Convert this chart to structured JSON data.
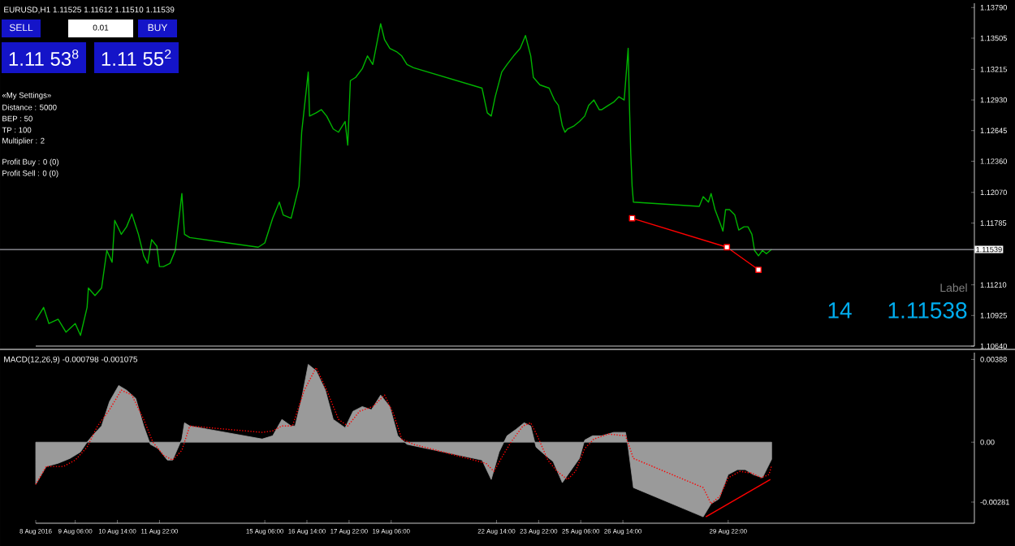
{
  "chart_data": [
    {
      "type": "line",
      "title": "EURUSD,H1  1.11525 1.11612 1.11510 1.11539",
      "annotations": [
        "SELL",
        "0.01",
        "BUY",
        "1.11 53$^{8}$",
        "1.11 55$^{2}$",
        "«My Settings»",
        "Distance : 5000",
        "BEP : 50",
        "TP : 100",
        "Multiplier : 2",
        "Profit Buy : 0 (0)",
        "Profit Sell : 0 (0)",
        "Label",
        "14",
        "1.11538"
      ],
      "xlim": [
        "2016-08-08T00:00",
        "2016-09-06T17:00"
      ],
      "ylim": [
        1.1064,
        1.1383
      ],
      "tick_labels": "y",
      "yticks": [
        {
          "value": 1.1379,
          "label": "1.13790"
        },
        {
          "value": 1.13505,
          "label": "1.13505"
        },
        {
          "value": 1.13215,
          "label": "1.13215"
        },
        {
          "value": 1.1293,
          "label": "1.12930"
        },
        {
          "value": 1.12645,
          "label": "1.12645"
        },
        {
          "value": 1.1236,
          "label": "1.12360"
        },
        {
          "value": 1.1207,
          "label": "1.12070"
        },
        {
          "value": 1.11785,
          "label": "1.11785"
        },
        {
          "value": 1.1121,
          "label": "1.11210"
        },
        {
          "value": 1.10925,
          "label": "1.10925"
        },
        {
          "value": 1.1064,
          "label": "1.10640"
        }
      ],
      "ref_lines": [
        {
          "axis": "y",
          "value": 1.11539,
          "label": "1.11539",
          "color": "#a0a0a8"
        }
      ],
      "series": [
        {
          "color": "#00b400",
          "marker": "none",
          "x": [
            "2016-08-08T00:00",
            "2016-08-08T06:00",
            "2016-08-08T10:00",
            "2016-08-08T17:00",
            "2016-08-08T23:00",
            "2016-08-09T06:00",
            "2016-08-09T10:00",
            "2016-08-09T15:00",
            "2016-08-09T16:00",
            "2016-08-09T21:00",
            "2016-08-10T02:00",
            "2016-08-10T06:00",
            "2016-08-10T10:00",
            "2016-08-10T12:00",
            "2016-08-10T17:00",
            "2016-08-10T21:00",
            "2016-08-11T01:00",
            "2016-08-11T06:00",
            "2016-08-11T10:00",
            "2016-08-11T13:00",
            "2016-08-11T16:00",
            "2016-08-11T20:00",
            "2016-08-11T22:00",
            "2016-08-12T01:00",
            "2016-08-12T06:00",
            "2016-08-12T10:00",
            "2016-08-12T15:00",
            "2016-08-12T17:00",
            "2016-08-12T21:00",
            "2016-08-15T01:00",
            "2016-08-15T06:00",
            "2016-08-15T12:00",
            "2016-08-15T17:00",
            "2016-08-15T20:00",
            "2016-08-16T02:00",
            "2016-08-16T05:00",
            "2016-08-16T08:00",
            "2016-08-16T10:00",
            "2016-08-16T15:00",
            "2016-08-16T16:00",
            "2016-08-16T21:00",
            "2016-08-17T01:00",
            "2016-08-17T05:00",
            "2016-08-17T10:00",
            "2016-08-17T14:00",
            "2016-08-17T19:00",
            "2016-08-17T21:00",
            "2016-08-17T23:00",
            "2016-08-18T03:00",
            "2016-08-18T08:00",
            "2016-08-18T12:00",
            "2016-08-18T16:00",
            "2016-08-18T22:00",
            "2016-08-19T01:00",
            "2016-08-19T05:00",
            "2016-08-19T10:00",
            "2016-08-19T14:00",
            "2016-08-19T18:00",
            "2016-08-19T23:00",
            "2016-08-22T03:00",
            "2016-08-22T07:00",
            "2016-08-22T10:00",
            "2016-08-22T13:00",
            "2016-08-22T18:00",
            "2016-08-22T22:00",
            "2016-08-23T03:00",
            "2016-08-23T08:00",
            "2016-08-23T12:00",
            "2016-08-23T16:00",
            "2016-08-23T18:00",
            "2016-08-23T23:00",
            "2016-08-24T06:00",
            "2016-08-24T10:00",
            "2016-08-24T13:00",
            "2016-08-24T16:00",
            "2016-08-24T18:00",
            "2016-08-24T20:00",
            "2016-08-25T01:00",
            "2016-08-25T05:00",
            "2016-08-25T09:00",
            "2016-08-25T12:00",
            "2016-08-25T16:00",
            "2016-08-25T20:00",
            "2016-08-25T22:00",
            "2016-08-26T03:00",
            "2016-08-26T07:00",
            "2016-08-26T11:00",
            "2016-08-26T15:00",
            "2016-08-26T18:00",
            "2016-08-26T19:00",
            "2016-08-26T20:00",
            "2016-08-26T21:00",
            "2016-08-26T22:00",
            "2016-08-29T00:00",
            "2016-08-29T03:00",
            "2016-08-29T07:00",
            "2016-08-29T09:00",
            "2016-08-29T12:00",
            "2016-08-29T16:00",
            "2016-08-29T18:00",
            "2016-08-29T20:00",
            "2016-08-29T23:00",
            "2016-08-30T03:00",
            "2016-08-30T06:00",
            "2016-08-30T10:00",
            "2016-08-30T13:00",
            "2016-08-30T16:00",
            "2016-08-30T18:00",
            "2016-08-30T21:00",
            "2016-08-31T00:00",
            "2016-08-31T03:00",
            "2016-08-31T06:00",
            "2016-08-31T07:00"
          ],
          "values": [
            1.1088,
            1.11,
            1.1085,
            1.1089,
            1.1077,
            1.1085,
            1.1074,
            1.11,
            1.1118,
            1.1111,
            1.1118,
            1.1153,
            1.1142,
            1.1181,
            1.1168,
            1.1175,
            1.1187,
            1.1168,
            1.1148,
            1.1141,
            1.1163,
            1.1157,
            1.1138,
            1.1138,
            1.1141,
            1.1153,
            1.1206,
            1.1168,
            1.1165,
            1.1156,
            1.116,
            1.1183,
            1.1198,
            1.1186,
            1.1183,
            1.1198,
            1.1213,
            1.1263,
            1.1319,
            1.1278,
            1.1281,
            1.1284,
            1.1278,
            1.1266,
            1.1263,
            1.1273,
            1.1251,
            1.1311,
            1.1314,
            1.1322,
            1.1334,
            1.1326,
            1.1364,
            1.1349,
            1.1341,
            1.1338,
            1.1334,
            1.1326,
            1.1323,
            1.1304,
            1.1281,
            1.1278,
            1.1296,
            1.1319,
            1.1326,
            1.1334,
            1.1341,
            1.1353,
            1.1334,
            1.1314,
            1.1307,
            1.1304,
            1.1293,
            1.1288,
            1.1269,
            1.1263,
            1.1266,
            1.1269,
            1.1273,
            1.1278,
            1.1288,
            1.1293,
            1.1284,
            1.1284,
            1.1288,
            1.1291,
            1.1296,
            1.1293,
            1.1341,
            1.1287,
            1.1243,
            1.1213,
            1.1198,
            1.1194,
            1.1203,
            1.1198,
            1.1206,
            1.1191,
            1.1178,
            1.1171,
            1.1191,
            1.1191,
            1.1186,
            1.1172,
            1.1175,
            1.1175,
            1.1168,
            1.1153,
            1.1148,
            1.1153,
            1.115,
            1.1153,
            1.1154
          ]
        },
        {
          "color": "#ff0000",
          "marker": "square",
          "x": [
            "2016-08-26T21:00",
            "2016-08-29T21:00",
            "2016-08-30T21:00"
          ],
          "values": [
            1.1183,
            1.1156,
            1.1135
          ]
        }
      ]
    },
    {
      "type": "area",
      "title": "MACD(12,26,9) -0.000798 -0.001075",
      "xlim": [
        "2016-08-08T00:00",
        "2016-09-06T17:00"
      ],
      "ylim": [
        -0.0038,
        0.0042
      ],
      "xticks": [
        {
          "value": "2016-08-08T00:00",
          "label": "8 Aug 2016"
        },
        {
          "value": "2016-08-09T06:00",
          "label": "9 Aug 06:00"
        },
        {
          "value": "2016-08-10T14:00",
          "label": "10 Aug 14:00"
        },
        {
          "value": "2016-08-11T22:00",
          "label": "11 Aug 22:00"
        },
        {
          "value": "2016-08-15T06:00",
          "label": "15 Aug 06:00"
        },
        {
          "value": "2016-08-16T14:00",
          "label": "16 Aug 14:00"
        },
        {
          "value": "2016-08-17T22:00",
          "label": "17 Aug 22:00"
        },
        {
          "value": "2016-08-19T06:00",
          "label": "19 Aug 06:00"
        },
        {
          "value": "2016-08-22T14:00",
          "label": "22 Aug 14:00"
        },
        {
          "value": "2016-08-23T22:00",
          "label": "23 Aug 22:00"
        },
        {
          "value": "2016-08-25T06:00",
          "label": "25 Aug 06:00"
        },
        {
          "value": "2016-08-26T14:00",
          "label": "26 Aug 14:00"
        },
        {
          "value": "2016-08-29T22:00",
          "label": "29 Aug 22:00"
        }
      ],
      "yticks": [
        {
          "value": 0.00388,
          "label": "0.00388"
        },
        {
          "value": 0,
          "label": "0.00"
        },
        {
          "value": -0.00281,
          "label": "-0.00281"
        }
      ],
      "series": [
        {
          "color": "#9a9a9a",
          "x": [
            "2016-08-08T00:00",
            "2016-08-08T08:00",
            "2016-08-08T17:00",
            "2016-08-09T02:00",
            "2016-08-09T10:00",
            "2016-08-09T15:00",
            "2016-08-09T19:00",
            "2016-08-10T02:00",
            "2016-08-10T08:00",
            "2016-08-10T15:00",
            "2016-08-10T21:00",
            "2016-08-11T04:00",
            "2016-08-11T10:00",
            "2016-08-11T15:00",
            "2016-08-11T21:00",
            "2016-08-12T04:00",
            "2016-08-12T08:00",
            "2016-08-12T15:00",
            "2016-08-12T17:00",
            "2016-08-12T21:00",
            "2016-08-15T04:00",
            "2016-08-15T12:00",
            "2016-08-15T19:00",
            "2016-08-16T02:00",
            "2016-08-16T05:00",
            "2016-08-16T10:00",
            "2016-08-16T15:00",
            "2016-08-16T21:00",
            "2016-08-17T04:00",
            "2016-08-17T10:00",
            "2016-08-17T19:00",
            "2016-08-18T01:00",
            "2016-08-18T08:00",
            "2016-08-18T15:00",
            "2016-08-18T22:00",
            "2016-08-19T05:00",
            "2016-08-19T11:00",
            "2016-08-19T18:00",
            "2016-08-22T03:00",
            "2016-08-22T10:00",
            "2016-08-22T16:00",
            "2016-08-22T22:00",
            "2016-08-23T05:00",
            "2016-08-23T11:00",
            "2016-08-23T16:00",
            "2016-08-23T20:00",
            "2016-08-24T03:00",
            "2016-08-24T09:00",
            "2016-08-24T16:00",
            "2016-08-24T22:00",
            "2016-08-25T05:00",
            "2016-08-25T09:00",
            "2016-08-25T15:00",
            "2016-08-25T22:00",
            "2016-08-26T07:00",
            "2016-08-26T16:00",
            "2016-08-26T18:00",
            "2016-08-26T22:00",
            "2016-08-29T03:00",
            "2016-08-29T09:00",
            "2016-08-29T15:00",
            "2016-08-29T22:00",
            "2016-08-30T05:00",
            "2016-08-30T11:00",
            "2016-08-30T17:00",
            "2016-08-31T00:00",
            "2016-08-31T07:00"
          ],
          "values": [
            -0.00198,
            -0.00114,
            -0.00099,
            -0.00076,
            -0.00046,
            0,
            0.0003,
            0.00076,
            0.0019,
            0.00266,
            0.00244,
            0.00205,
            0.00076,
            -0.0001,
            -0.0003,
            -0.00084,
            -0.00084,
            0.00015,
            0.00091,
            0.00076,
            0.00015,
            0.0003,
            0.00107,
            0.00076,
            0.00076,
            0.00205,
            0.00365,
            0.00335,
            0.00244,
            0.00107,
            0.00068,
            0.00145,
            0.00167,
            0.00152,
            0.00221,
            0.00167,
            0.0003,
            -0.0001,
            -0.00084,
            -0.00175,
            -0.00046,
            0.0003,
            0.00061,
            0.00091,
            0.00076,
            -0.00023,
            -0.00061,
            -0.00091,
            -0.0019,
            -0.00137,
            -0.00076,
            0.0001,
            0.0003,
            0.0003,
            0.00046,
            0.00046,
            -0.00023,
            -0.00213,
            -0.0035,
            -0.00289,
            -0.00266,
            -0.00152,
            -0.00129,
            -0.00129,
            -0.00152,
            -0.00167,
            -0.0008
          ]
        },
        {
          "type": "line",
          "color": "#ff0000",
          "line_style": "dotted",
          "x": [
            "2016-08-08T00:00",
            "2016-08-08T08:00",
            "2016-08-08T21:00",
            "2016-08-09T06:00",
            "2016-08-09T15:00",
            "2016-08-09T23:00",
            "2016-08-10T08:00",
            "2016-08-10T17:00",
            "2016-08-11T01:00",
            "2016-08-11T10:00",
            "2016-08-11T17:00",
            "2016-08-12T01:00",
            "2016-08-12T08:00",
            "2016-08-12T15:00",
            "2016-08-12T21:00",
            "2016-08-15T04:00",
            "2016-08-15T12:00",
            "2016-08-15T19:00",
            "2016-08-16T03:00",
            "2016-08-16T12:00",
            "2016-08-16T21:00",
            "2016-08-17T05:00",
            "2016-08-17T14:00",
            "2016-08-17T21:00",
            "2016-08-18T06:00",
            "2016-08-18T16:00",
            "2016-08-19T01:00",
            "2016-08-19T08:00",
            "2016-08-19T14:00",
            "2016-08-19T23:00",
            "2016-08-22T06:00",
            "2016-08-22T12:00",
            "2016-08-22T19:00",
            "2016-08-23T01:00",
            "2016-08-23T10:00",
            "2016-08-23T16:00",
            "2016-08-23T21:00",
            "2016-08-24T05:00",
            "2016-08-24T12:00",
            "2016-08-24T20:00",
            "2016-08-25T02:00",
            "2016-08-25T09:00",
            "2016-08-25T16:00",
            "2016-08-26T03:00",
            "2016-08-26T16:00",
            "2016-08-26T22:00",
            "2016-08-29T03:00",
            "2016-08-29T09:00",
            "2016-08-29T16:00",
            "2016-08-29T22:00",
            "2016-08-30T07:00",
            "2016-08-30T16:00",
            "2016-08-30T23:00",
            "2016-08-31T05:00",
            "2016-08-31T07:00"
          ],
          "values": [
            -0.00198,
            -0.00114,
            -0.00114,
            -0.00084,
            -0.00023,
            0.00076,
            0.00152,
            0.00244,
            0.00221,
            0.00107,
            0,
            -0.00061,
            -0.00084,
            -0.00038,
            0.00076,
            0.00046,
            0.00053,
            0.00076,
            0.00076,
            0.00244,
            0.0035,
            0.00244,
            0.00107,
            0.00076,
            0.00145,
            0.00167,
            0.00221,
            0.00129,
            0.00015,
            -0.0001,
            -0.00099,
            -0.00137,
            -0.00061,
            0,
            0.00076,
            0.00091,
            0.0003,
            -0.00084,
            -0.00137,
            -0.00175,
            -0.00137,
            -0.0003,
            0.00015,
            0.00038,
            0.0003,
            -0.00076,
            -0.00213,
            -0.00289,
            -0.00251,
            -0.00167,
            -0.00137,
            -0.00145,
            -0.00167,
            -0.00152,
            -0.00108
          ]
        },
        {
          "type": "line",
          "color": "#ff0000",
          "x": [
            "2016-08-29T05:00",
            "2016-08-31T06:00"
          ],
          "values": [
            -0.0035,
            -0.00175
          ]
        }
      ]
    }
  ]
}
